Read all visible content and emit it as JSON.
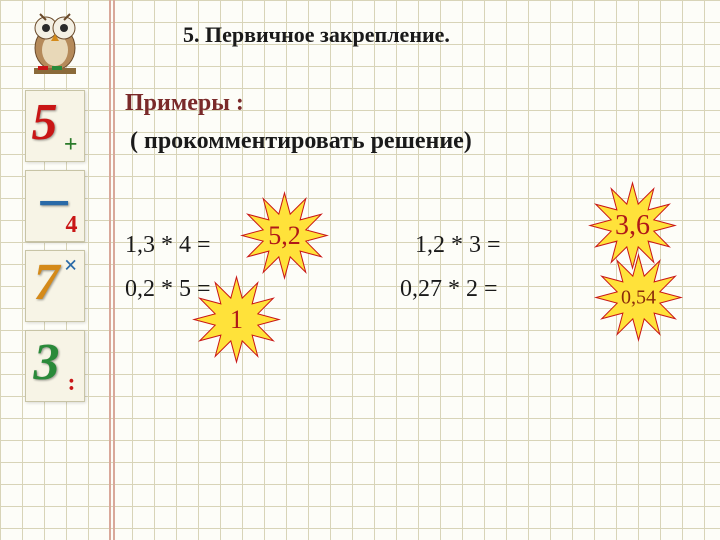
{
  "heading": "5. Первичное закрепление.",
  "examples_label": "Примеры :",
  "subtitle": "( прокомментировать решение)",
  "equations": {
    "eq1": "1,3 * 4  =",
    "eq2": "1,2 * 3 =",
    "eq3": "0,2 * 5  =",
    "eq4": "0,27 * 2 ="
  },
  "answers": {
    "a1": "5,2",
    "a2": "3,6",
    "a3": "1",
    "a4": "0,54"
  },
  "starburst": {
    "fill": "#ffe23a",
    "stroke": "#c91616",
    "stroke_width": 1.2
  },
  "sidebar": {
    "digits": [
      {
        "main": "5",
        "main_color": "#c91616",
        "small": "+",
        "small_color": "#2a7a2a"
      },
      {
        "main": "−",
        "main_color": "#2a6aa8",
        "small": "4",
        "small_color": "#c91616"
      },
      {
        "main": "7",
        "main_color": "#d48a1a",
        "small": "×",
        "small_color": "#2a6aa8"
      },
      {
        "main": "3",
        "main_color": "#2a8a3a",
        "small": ":",
        "small_color": "#c91616"
      }
    ]
  },
  "colors": {
    "grid_bg": "#fdfdf8",
    "grid_line": "#d8d4b8",
    "margin_line": "#d9a89a",
    "heading_text": "#1a1a1a",
    "examples_text": "#7a2a2a"
  }
}
